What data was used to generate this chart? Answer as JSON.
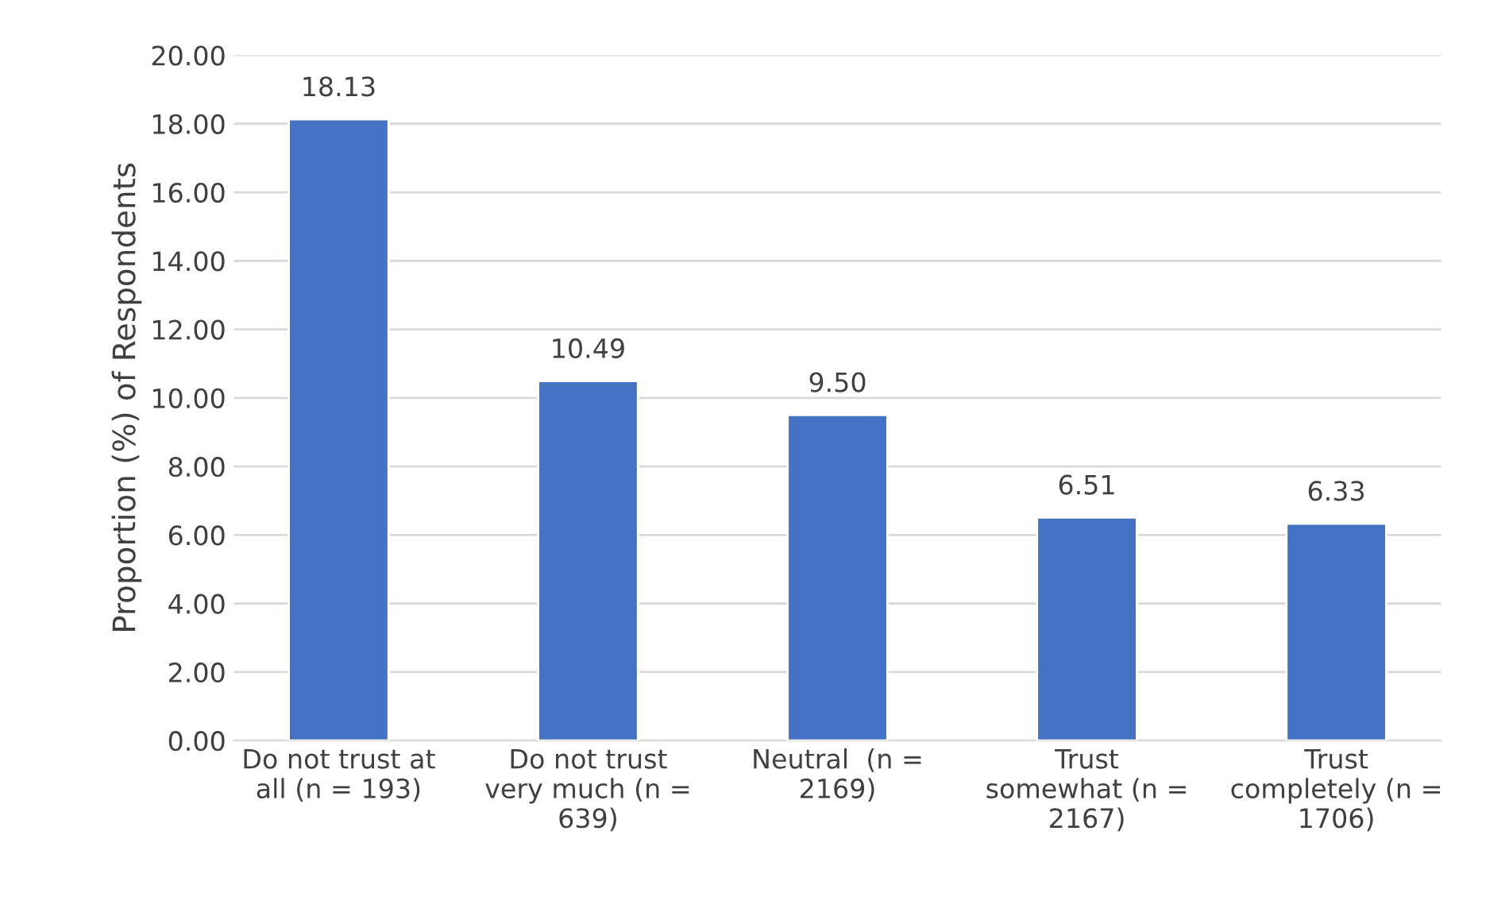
{
  "chart_data": {
    "type": "bar",
    "ylabel": "Proportion (%) of Respondents",
    "categories": [
      "Do not trust at\nall (n = 193)",
      "Do not trust\nvery much (n =\n639)",
      "Neutral  (n =\n2169)",
      "Trust\nsomewhat (n =\n2167)",
      "Trust\ncompletely (n =\n1706)"
    ],
    "values": [
      18.13,
      10.49,
      9.5,
      6.51,
      6.33
    ],
    "value_labels": [
      "18.13",
      "10.49",
      "9.50",
      "6.51",
      "6.33"
    ],
    "color": "#4472c4",
    "ylim": [
      0,
      20
    ],
    "yticks": [
      {
        "value": 0,
        "label": "0.00"
      },
      {
        "value": 2,
        "label": "2.00"
      },
      {
        "value": 4,
        "label": "4.00"
      },
      {
        "value": 6,
        "label": "6.00"
      },
      {
        "value": 8,
        "label": "8.00"
      },
      {
        "value": 10,
        "label": "10.00"
      },
      {
        "value": 12,
        "label": "12.00"
      },
      {
        "value": 14,
        "label": "14.00"
      },
      {
        "value": 16,
        "label": "16.00"
      },
      {
        "value": 18,
        "label": "18.00"
      },
      {
        "value": 20,
        "label": "20.00"
      }
    ],
    "grid": "y",
    "legend": false
  }
}
